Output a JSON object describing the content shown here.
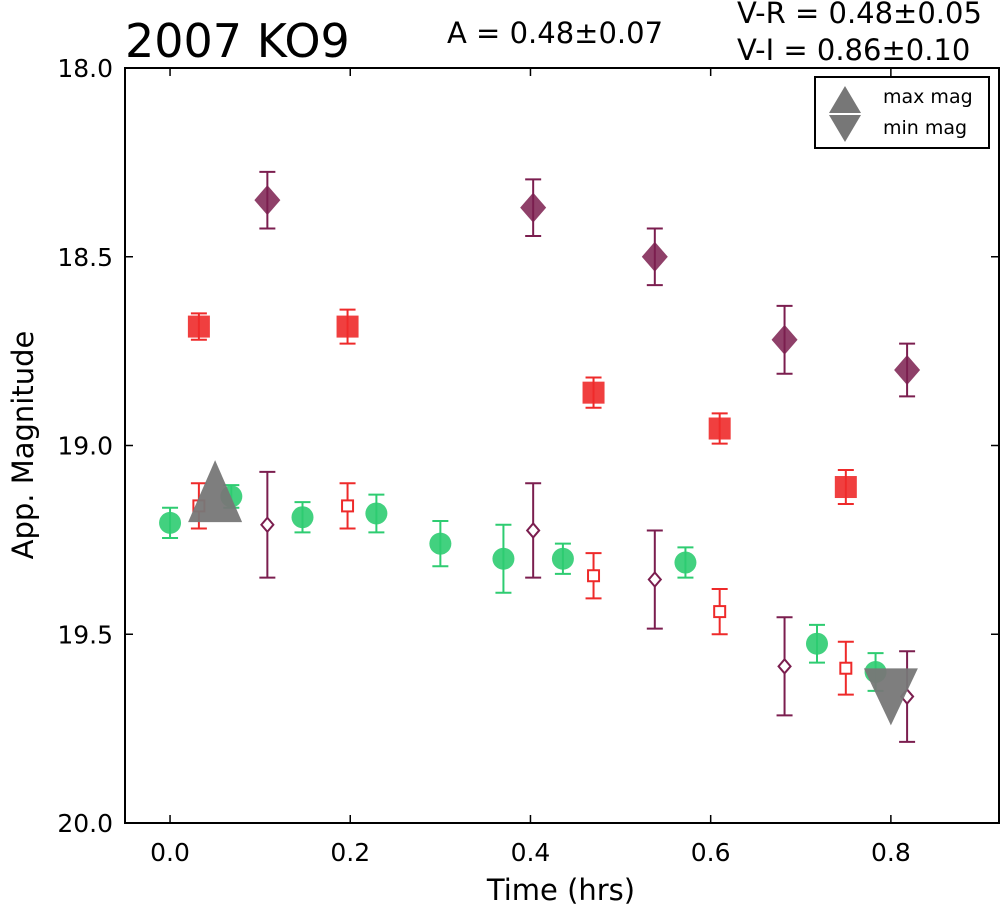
{
  "chart_data": {
    "type": "scatter",
    "title": "2007 KO9",
    "annotations": {
      "amplitude": "A  = 0.48±0.07",
      "v_r": "V-R = 0.48±0.05",
      "v_i": "V-I  = 0.86±0.10"
    },
    "xlabel": "Time (hrs)",
    "ylabel": "App. Magnitude",
    "xlim": [
      -0.05,
      0.92
    ],
    "ylim": [
      20.0,
      18.0
    ],
    "y_inverted": true,
    "xticks": [
      "0.0",
      "0.2",
      "0.4",
      "0.6",
      "0.8"
    ],
    "yticks": [
      "18.0",
      "18.5",
      "19.0",
      "19.5",
      "20.0"
    ],
    "xtick_values": [
      0.0,
      0.2,
      0.4,
      0.6,
      0.8
    ],
    "ytick_values": [
      18.0,
      18.5,
      19.0,
      19.5,
      20.0
    ],
    "grid": false,
    "legend_position": "top-right",
    "legend": [
      {
        "label": "max mag",
        "marker": "triangle-up"
      },
      {
        "label": "min mag",
        "marker": "triangle-down"
      }
    ],
    "series": [
      {
        "marker": "circle-filled",
        "color": "#2ecc71",
        "points": [
          {
            "x": 0.0,
            "y": 19.205,
            "err": 0.04
          },
          {
            "x": 0.068,
            "y": 19.135,
            "err": 0.03
          },
          {
            "x": 0.147,
            "y": 19.19,
            "err": 0.04
          },
          {
            "x": 0.229,
            "y": 19.18,
            "err": 0.05
          },
          {
            "x": 0.3,
            "y": 19.26,
            "err": 0.06
          },
          {
            "x": 0.37,
            "y": 19.3,
            "err": 0.09
          },
          {
            "x": 0.436,
            "y": 19.3,
            "err": 0.04
          },
          {
            "x": 0.572,
            "y": 19.31,
            "err": 0.04
          },
          {
            "x": 0.718,
            "y": 19.525,
            "err": 0.05
          },
          {
            "x": 0.783,
            "y": 19.6,
            "err": 0.05
          }
        ]
      },
      {
        "marker": "square-open",
        "color": "#ee2a2a",
        "points": [
          {
            "x": 0.032,
            "y": 19.16,
            "err": 0.06
          },
          {
            "x": 0.197,
            "y": 19.16,
            "err": 0.06
          },
          {
            "x": 0.47,
            "y": 19.345,
            "err": 0.06
          },
          {
            "x": 0.61,
            "y": 19.44,
            "err": 0.06
          },
          {
            "x": 0.75,
            "y": 19.59,
            "err": 0.07
          }
        ]
      },
      {
        "marker": "square-filled",
        "color": "#ee2a2a",
        "points": [
          {
            "x": 0.032,
            "y": 18.685,
            "err": 0.035
          },
          {
            "x": 0.197,
            "y": 18.685,
            "err": 0.045
          },
          {
            "x": 0.47,
            "y": 18.86,
            "err": 0.04
          },
          {
            "x": 0.61,
            "y": 18.955,
            "err": 0.04
          },
          {
            "x": 0.75,
            "y": 19.11,
            "err": 0.045
          }
        ]
      },
      {
        "marker": "diamond-filled",
        "color": "#7b1e4f",
        "points": [
          {
            "x": 0.108,
            "y": 18.35,
            "err": 0.075
          },
          {
            "x": 0.403,
            "y": 18.37,
            "err": 0.075
          },
          {
            "x": 0.538,
            "y": 18.5,
            "err": 0.075
          },
          {
            "x": 0.682,
            "y": 18.72,
            "err": 0.09
          },
          {
            "x": 0.818,
            "y": 18.8,
            "err": 0.07
          }
        ]
      },
      {
        "marker": "diamond-open",
        "color": "#7b1e4f",
        "points": [
          {
            "x": 0.108,
            "y": 19.21,
            "err": 0.14
          },
          {
            "x": 0.403,
            "y": 19.225,
            "err": 0.125
          },
          {
            "x": 0.538,
            "y": 19.355,
            "err": 0.13
          },
          {
            "x": 0.682,
            "y": 19.585,
            "err": 0.13
          },
          {
            "x": 0.818,
            "y": 19.665,
            "err": 0.12
          }
        ]
      },
      {
        "marker": "triangle-up",
        "color": "#777777",
        "points": [
          {
            "x": 0.05,
            "y": 19.15
          }
        ]
      },
      {
        "marker": "triangle-down",
        "color": "#777777",
        "points": [
          {
            "x": 0.8,
            "y": 19.63
          }
        ]
      }
    ]
  }
}
